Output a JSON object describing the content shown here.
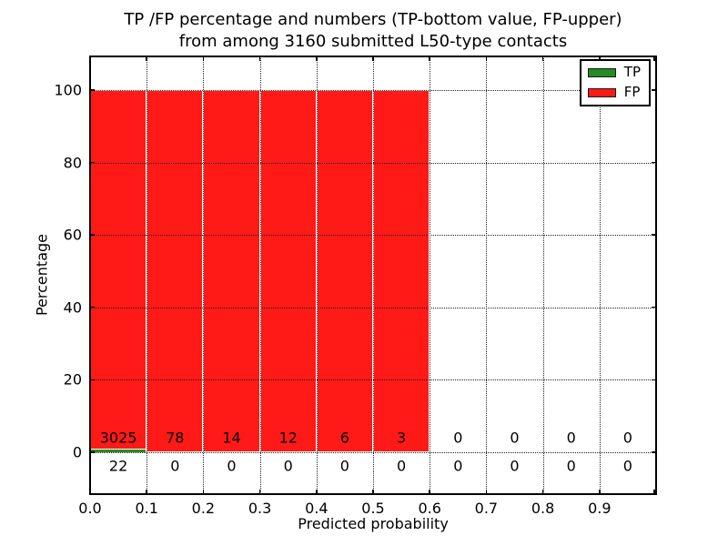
{
  "figure": {
    "title_line1": "TP /FP percentage and numbers (TP-bottom value, FP-upper)",
    "title_line2": "from among 3160 submitted L50-type contacts",
    "xlabel": "Predicted probability",
    "ylabel": "Percentage",
    "background_color": "#ffffff",
    "frame_color": "#000000",
    "grid_style": "dotted"
  },
  "chart_data": {
    "type": "bar",
    "subtype": "stacked-histogram",
    "title": "TP /FP percentage and numbers (TP-bottom value, FP-upper) from among 3160 submitted L50-type contacts",
    "xlabel": "Predicted probability",
    "ylabel": "Percentage",
    "total_submitted": 3160,
    "bin_edges": [
      0.0,
      0.1,
      0.2,
      0.3,
      0.4,
      0.5,
      0.6,
      0.7,
      0.8,
      0.9,
      1.0
    ],
    "x_tick_labels": [
      "0.0",
      "0.1",
      "0.2",
      "0.3",
      "0.4",
      "0.5",
      "0.6",
      "0.7",
      "0.8",
      "0.9"
    ],
    "y_ticks": [
      0,
      20,
      40,
      60,
      80,
      100
    ],
    "xlim": [
      0.0,
      1.0
    ],
    "ylim": [
      -11.6,
      109.3
    ],
    "grid": true,
    "legend_position": "upper-right",
    "series": [
      {
        "name": "TP",
        "color": "#238b23",
        "counts": [
          22,
          0,
          0,
          0,
          0,
          0,
          0,
          0,
          0,
          0
        ],
        "pct": [
          0.72,
          0,
          0,
          0,
          0,
          0,
          0,
          0,
          0,
          0
        ]
      },
      {
        "name": "FP",
        "color": "#ff1a17",
        "counts": [
          3025,
          78,
          14,
          12,
          6,
          3,
          0,
          0,
          0,
          0
        ],
        "pct": [
          99.28,
          100,
          100,
          100,
          100,
          100,
          0,
          0,
          0,
          0
        ]
      }
    ]
  }
}
